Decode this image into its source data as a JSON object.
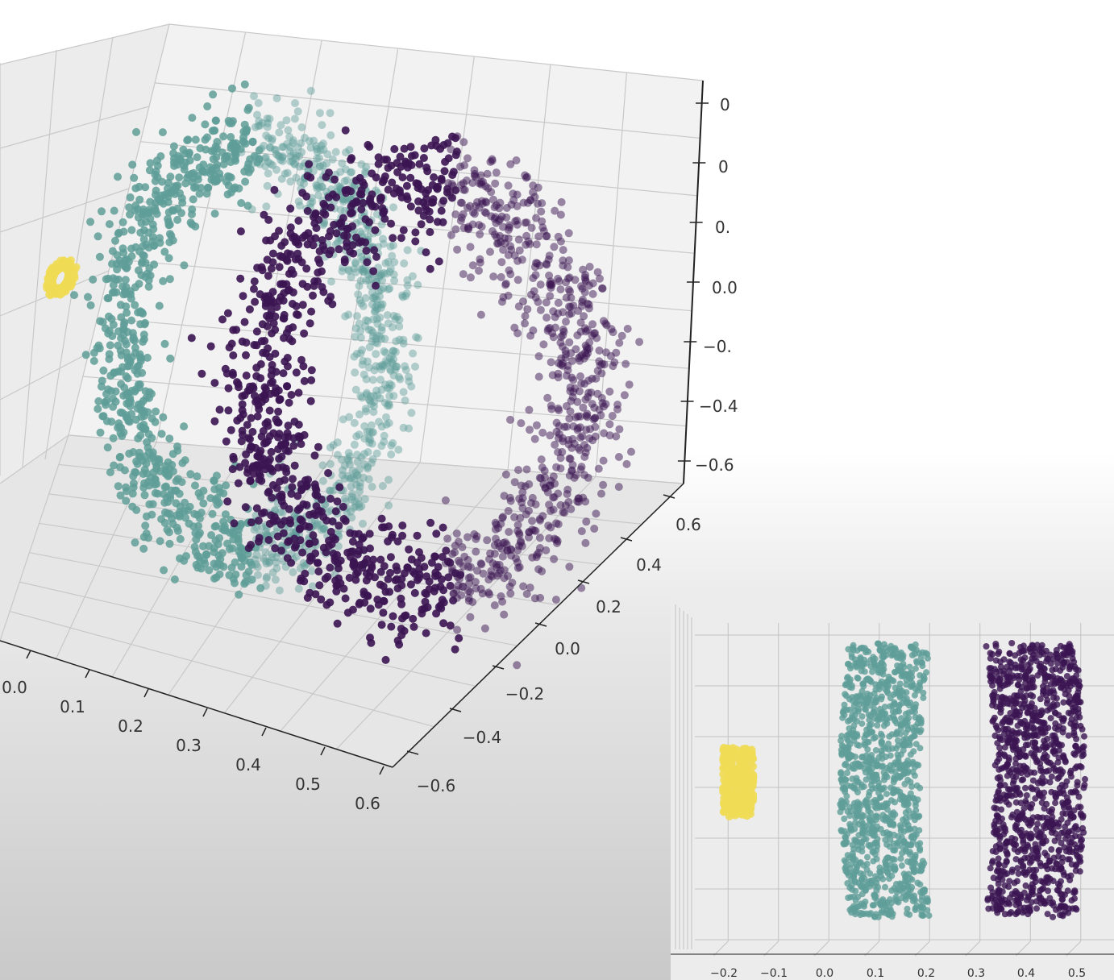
{
  "colors": {
    "cluster_yellow": "#f0dc55",
    "cluster_teal": "#5f9e98",
    "cluster_purple": "#3b1552",
    "grid": "#c8c8c8",
    "pane": "#f2f2f2"
  },
  "chart_data": [
    {
      "type": "scatter",
      "projection": "3d",
      "view": "oblique",
      "grid": true,
      "x_ticks": [
        "0.0",
        "0.1",
        "0.2",
        "0.3",
        "0.4",
        "0.5",
        "0.6"
      ],
      "y_ticks": [
        "−0.6",
        "−0.4",
        "−0.2",
        "0.0",
        "0.2",
        "0.4",
        "0.6"
      ],
      "z_ticks": [
        "0",
        "0",
        "0.",
        "0.0",
        "−0.",
        "−0.4",
        "−0.6"
      ],
      "xlim": [
        0.0,
        0.6
      ],
      "ylim": [
        -0.6,
        0.6
      ],
      "zlim": [
        -0.6,
        0.6
      ],
      "series": [
        {
          "color": "#f0dc55",
          "shape": "small ring",
          "center": [
            0.05,
            0.55,
            0.25
          ],
          "count": 600
        },
        {
          "color": "#5f9e98",
          "shape": "ring",
          "center": [
            0.25,
            0.0,
            0.0
          ],
          "count": 1500
        },
        {
          "color": "#3b1552",
          "shape": "ring",
          "center": [
            0.42,
            0.0,
            0.0
          ],
          "count": 1500
        }
      ]
    },
    {
      "type": "scatter",
      "projection": "3d",
      "view": "side",
      "grid": true,
      "x_ticks": [
        "−0.2",
        "−0.1",
        "0.0",
        "0.1",
        "0.2",
        "0.3",
        "0.4",
        "0.5"
      ],
      "xlim": [
        -0.25,
        0.55
      ],
      "series": [
        {
          "color": "#f0dc55",
          "x_center": -0.18,
          "x_spread": 0.03
        },
        {
          "color": "#5f9e98",
          "x_center": 0.12,
          "x_spread": 0.08
        },
        {
          "color": "#3b1552",
          "x_center": 0.4,
          "x_spread": 0.09
        }
      ]
    }
  ]
}
